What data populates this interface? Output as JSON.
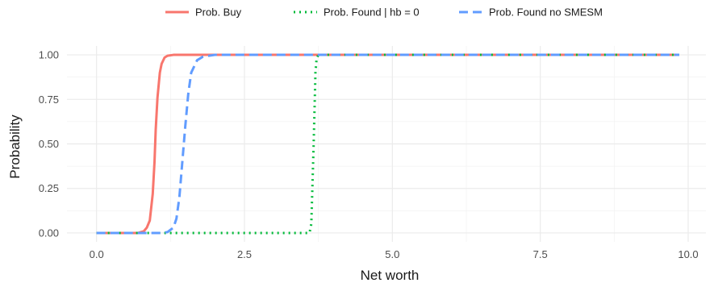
{
  "chart_data": {
    "type": "line",
    "xlabel": "Net worth",
    "ylabel": "Probability",
    "xlim": [
      -0.5,
      10.3
    ],
    "ylim": [
      -0.05,
      1.05
    ],
    "x_ticks": [
      0,
      2.5,
      5,
      7.5,
      10
    ],
    "x_tick_labels": [
      "0.0",
      "2.5",
      "5.0",
      "7.5",
      "10.0"
    ],
    "y_ticks": [
      0,
      0.25,
      0.5,
      0.75,
      1
    ],
    "y_tick_labels": [
      "0.00",
      "0.25",
      "0.50",
      "0.75",
      "1.00"
    ],
    "grid": true,
    "legend_position": "top",
    "series": [
      {
        "name": "Prob. Buy",
        "color": "#f8766d",
        "dash": "solid",
        "x": [
          0.0,
          0.7,
          0.8,
          0.85,
          0.9,
          0.95,
          0.98,
          1.0,
          1.03,
          1.07,
          1.1,
          1.15,
          1.2,
          1.3,
          1.5,
          2.0,
          5.0,
          9.85
        ],
        "y": [
          0.0,
          0.0,
          0.01,
          0.03,
          0.07,
          0.22,
          0.4,
          0.58,
          0.76,
          0.9,
          0.95,
          0.985,
          0.995,
          1.0,
          1.0,
          1.0,
          1.0,
          1.0
        ]
      },
      {
        "name": "Prob. Found | hb = 0",
        "color": "#00ba38",
        "dash": "dotted",
        "x": [
          0.0,
          3.6,
          3.63,
          3.67,
          3.7,
          3.72,
          3.75,
          5.0,
          9.85
        ],
        "y": [
          0.0,
          0.0,
          0.05,
          0.5,
          0.9,
          0.98,
          1.0,
          1.0,
          1.0
        ]
      },
      {
        "name": "Prob. Found no SMESM",
        "color": "#619cff",
        "dash": "dashed",
        "x": [
          0.0,
          1.1,
          1.2,
          1.3,
          1.35,
          1.4,
          1.45,
          1.5,
          1.55,
          1.6,
          1.7,
          1.8,
          2.0,
          5.0,
          9.85
        ],
        "y": [
          0.0,
          0.0,
          0.005,
          0.03,
          0.08,
          0.2,
          0.4,
          0.6,
          0.78,
          0.9,
          0.97,
          0.99,
          1.0,
          1.0,
          1.0
        ]
      }
    ]
  }
}
